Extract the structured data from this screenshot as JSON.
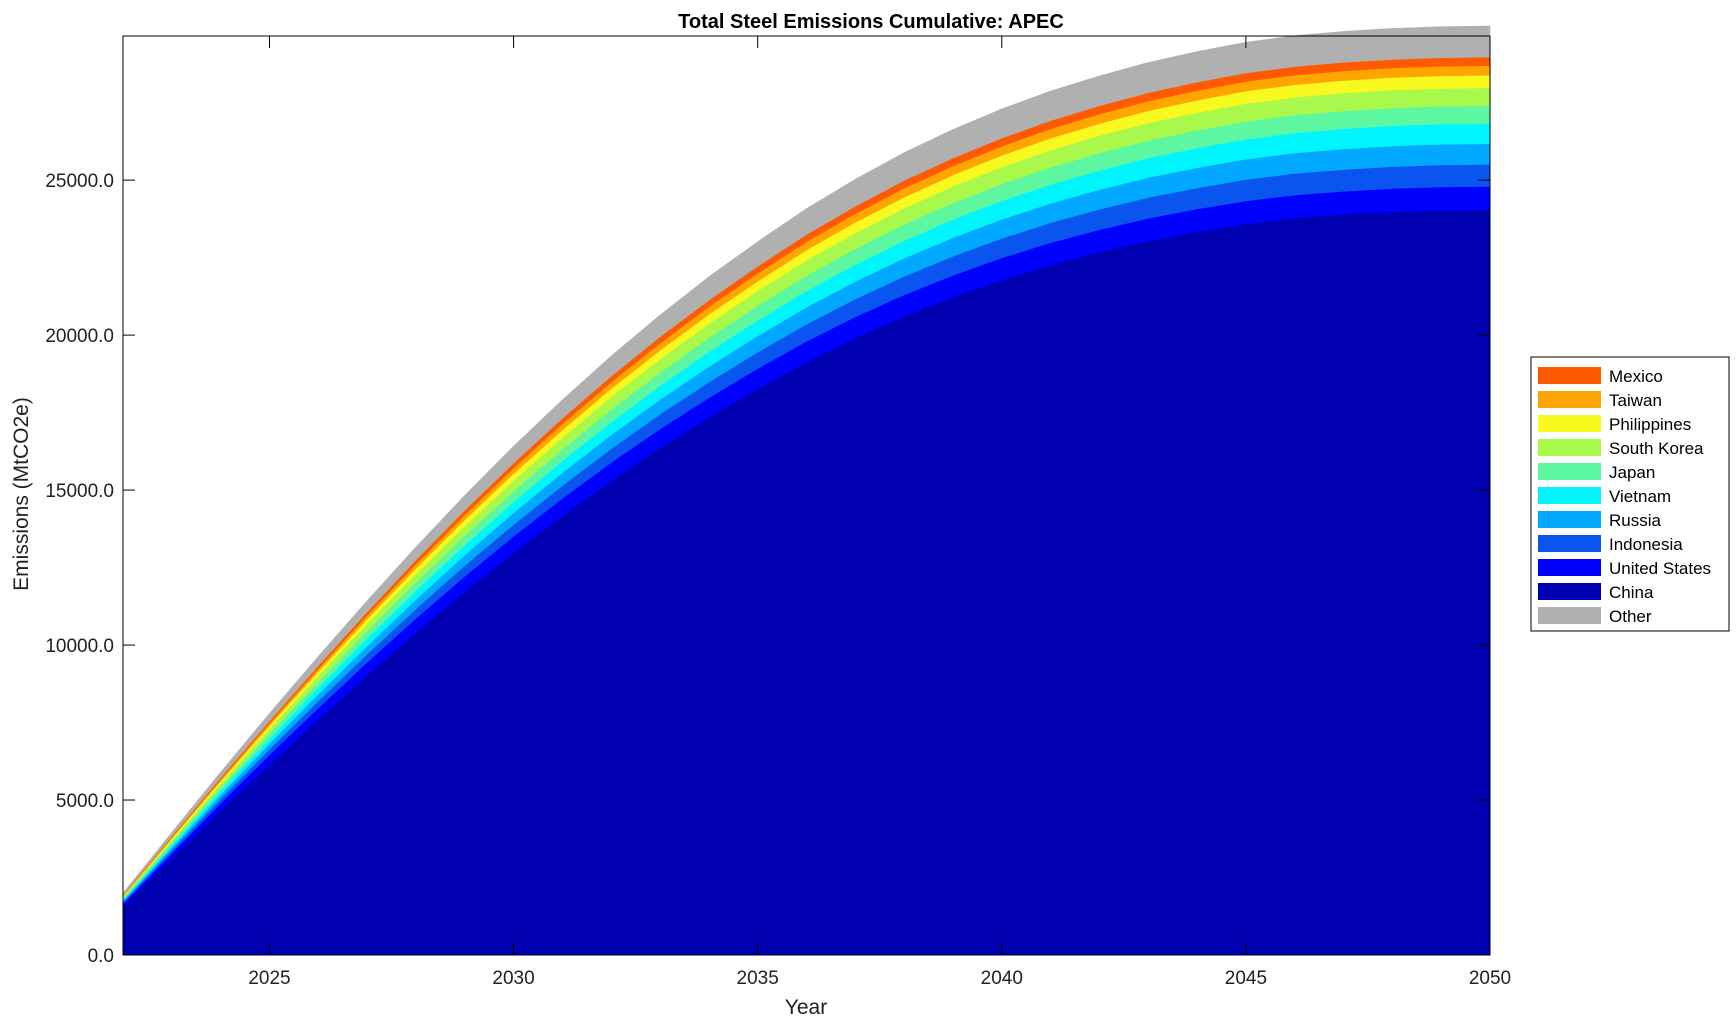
{
  "chart_data": {
    "type": "area",
    "stacked": true,
    "title": "Total Steel Emissions Cumulative: APEC",
    "xlabel": "Year",
    "ylabel": "Emissions (MtCO2e)",
    "xlim": [
      2022,
      2050
    ],
    "ylim": [
      0,
      29650
    ],
    "xticks": [
      "2025",
      "2030",
      "2035",
      "2040",
      "2045",
      "2050"
    ],
    "xtick_values": [
      2025,
      2030,
      2035,
      2040,
      2045,
      2050
    ],
    "yticks": [
      "0.0",
      "5000.0",
      "10000.0",
      "15000.0",
      "20000.0",
      "25000.0"
    ],
    "ytick_values": [
      0,
      5000,
      10000,
      15000,
      20000,
      25000
    ],
    "grid": false,
    "legend_position": "right",
    "x": [
      2022,
      2023,
      2024,
      2025,
      2026,
      2027,
      2028,
      2029,
      2030,
      2031,
      2032,
      2033,
      2034,
      2035,
      2036,
      2037,
      2038,
      2039,
      2040,
      2041,
      2042,
      2043,
      2044,
      2045,
      2046,
      2047,
      2048,
      2049,
      2050
    ],
    "series": [
      {
        "name": "China",
        "color": "#0000b0",
        "values": [
          1580,
          3130,
          4660,
          6150,
          7600,
          9020,
          10400,
          11720,
          12980,
          14170,
          15300,
          16360,
          17350,
          18270,
          19130,
          19910,
          20610,
          21230,
          21780,
          22260,
          22680,
          23040,
          23340,
          23590,
          23780,
          23900,
          23980,
          24030,
          24050
        ]
      },
      {
        "name": "United States",
        "color": "#0000ff",
        "values": [
          80,
          160,
          240,
          310,
          370,
          420,
          460,
          500,
          530,
          560,
          590,
          610,
          630,
          650,
          670,
          680,
          690,
          700,
          710,
          720,
          720,
          730,
          730,
          740,
          740,
          740,
          750,
          750,
          750
        ]
      },
      {
        "name": "Indonesia",
        "color": "#0a55f0",
        "values": [
          45,
          90,
          135,
          180,
          225,
          265,
          305,
          345,
          380,
          415,
          445,
          475,
          505,
          530,
          555,
          575,
          595,
          615,
          630,
          645,
          660,
          670,
          680,
          690,
          695,
          700,
          705,
          710,
          710
        ]
      },
      {
        "name": "Russia",
        "color": "#00a8ff",
        "values": [
          45,
          90,
          135,
          180,
          225,
          265,
          305,
          345,
          380,
          415,
          445,
          475,
          500,
          525,
          545,
          565,
          585,
          600,
          615,
          625,
          635,
          645,
          650,
          655,
          660,
          665,
          665,
          665,
          665
        ]
      },
      {
        "name": "Vietnam",
        "color": "#00f5ff",
        "values": [
          40,
          80,
          120,
          160,
          200,
          240,
          280,
          315,
          350,
          385,
          415,
          445,
          475,
          500,
          525,
          545,
          565,
          585,
          600,
          610,
          620,
          630,
          640,
          645,
          650,
          655,
          655,
          655,
          655
        ]
      },
      {
        "name": "Japan",
        "color": "#5cf7a0",
        "values": [
          40,
          80,
          120,
          160,
          200,
          240,
          275,
          310,
          345,
          375,
          405,
          430,
          455,
          475,
          495,
          510,
          525,
          535,
          545,
          555,
          560,
          565,
          570,
          575,
          575,
          575,
          575,
          575,
          575
        ]
      },
      {
        "name": "South Korea",
        "color": "#a8f94b",
        "values": [
          40,
          80,
          120,
          160,
          200,
          240,
          275,
          310,
          345,
          375,
          405,
          430,
          455,
          475,
          495,
          510,
          525,
          535,
          545,
          555,
          560,
          565,
          570,
          575,
          575,
          575,
          575,
          575,
          575
        ]
      },
      {
        "name": "Philippines",
        "color": "#f7f91f",
        "values": [
          25,
          50,
          75,
          100,
          125,
          150,
          175,
          200,
          225,
          245,
          265,
          285,
          300,
          315,
          330,
          345,
          355,
          365,
          375,
          385,
          390,
          395,
          400,
          405,
          405,
          405,
          405,
          405,
          405
        ]
      },
      {
        "name": "Taiwan",
        "color": "#ffa500",
        "values": [
          20,
          40,
          60,
          80,
          100,
          120,
          140,
          160,
          180,
          200,
          215,
          230,
          245,
          255,
          265,
          275,
          285,
          290,
          295,
          300,
          305,
          310,
          310,
          310,
          310,
          310,
          310,
          310,
          310
        ]
      },
      {
        "name": "Mexico",
        "color": "#ff5a00",
        "values": [
          18,
          36,
          54,
          72,
          90,
          108,
          126,
          144,
          160,
          175,
          190,
          205,
          215,
          225,
          235,
          245,
          252,
          258,
          262,
          265,
          268,
          270,
          272,
          273,
          274,
          275,
          275,
          275,
          275
        ]
      },
      {
        "name": "Other",
        "color": "#b0b0b0",
        "values": [
          60,
          120,
          180,
          240,
          300,
          360,
          420,
          480,
          540,
          595,
          650,
          700,
          750,
          795,
          835,
          870,
          900,
          920,
          940,
          955,
          965,
          975,
          985,
          990,
          995,
          1000,
          1000,
          1000,
          1000
        ]
      }
    ],
    "legend_order": [
      "Mexico",
      "Taiwan",
      "Philippines",
      "South Korea",
      "Japan",
      "Vietnam",
      "Russia",
      "Indonesia",
      "United States",
      "China",
      "Other"
    ]
  }
}
